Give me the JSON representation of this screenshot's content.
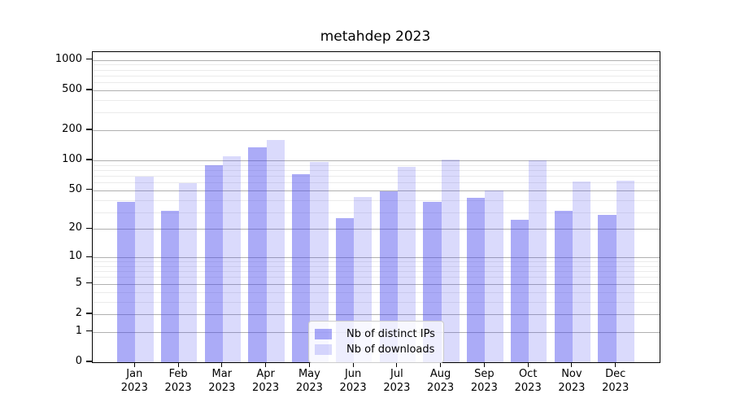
{
  "chart_data": {
    "type": "bar",
    "title": "metahdep 2023",
    "y_scale": "log1p",
    "grid": true,
    "legend_position": "lower center",
    "year": "2023",
    "categories": [
      "Jan",
      "Feb",
      "Mar",
      "Apr",
      "May",
      "Jun",
      "Jul",
      "Aug",
      "Sep",
      "Oct",
      "Nov",
      "Dec"
    ],
    "series": [
      {
        "name": "Nb of distinct IPs",
        "base_color": "#4444ee",
        "color": "rgba(68,68,238,0.45)",
        "values": [
          38,
          31,
          89,
          134,
          73,
          26,
          49,
          38,
          42,
          25,
          31,
          28
        ]
      },
      {
        "name": "Nb of downloads",
        "base_color": "#4444ee",
        "color": "rgba(68,68,238,0.2)",
        "values": [
          69,
          59,
          111,
          159,
          96,
          43,
          86,
          102,
          50,
          100,
          61,
          63
        ]
      }
    ],
    "y_ticks": [
      0,
      1,
      2,
      5,
      10,
      20,
      50,
      100,
      200,
      500,
      1000
    ],
    "y_tick_labels": [
      "0",
      "1",
      "2",
      "5",
      "10",
      "20",
      "50",
      "100",
      "200",
      "500",
      "1000"
    ],
    "y_minor_ticks": [
      3,
      4,
      6,
      7,
      8,
      9,
      30,
      40,
      60,
      70,
      80,
      90,
      300,
      400,
      600,
      700,
      800,
      900
    ],
    "ylim": [
      0,
      1200
    ],
    "style_colors": {
      "grid_major": "#b0b0b0",
      "grid_minor": "#ebebeb",
      "axis": "#000000",
      "text": "#000000",
      "legend_border": "#cccccc",
      "legend_bg": "rgba(255,255,255,0.8)"
    }
  }
}
